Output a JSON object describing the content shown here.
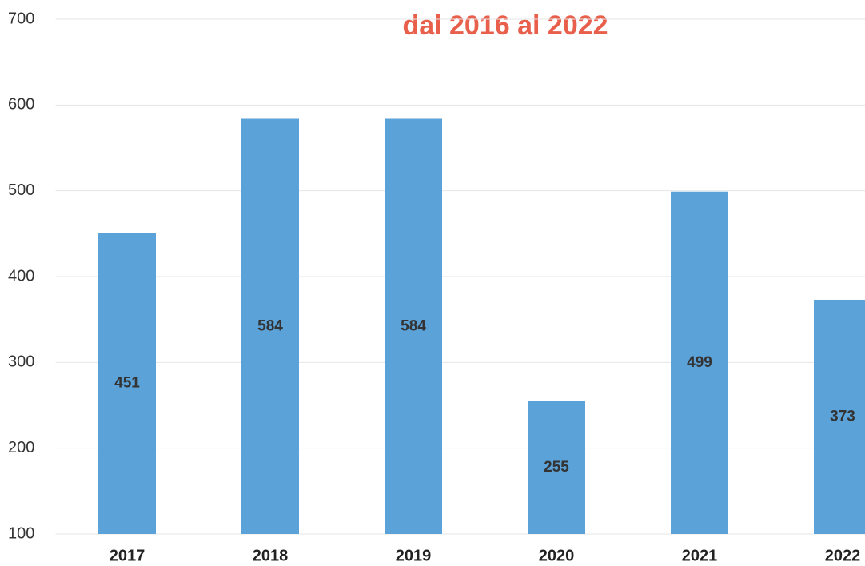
{
  "chart_data": {
    "type": "bar",
    "title": "dal 2016 al 2022",
    "title_color": "#e8604c",
    "categories": [
      "2017",
      "2018",
      "2019",
      "2020",
      "2021",
      "2022"
    ],
    "values": [
      451,
      584,
      584,
      255,
      499,
      373
    ],
    "color": "#5aa2d8",
    "ylim": [
      100,
      700
    ],
    "yticks": [
      100,
      200,
      300,
      400,
      500,
      600,
      700
    ],
    "grid": true
  }
}
